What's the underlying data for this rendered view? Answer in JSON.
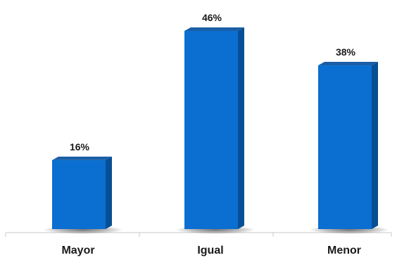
{
  "chart_data": {
    "type": "bar",
    "categories": [
      "Mayor",
      "Igual",
      "Menor"
    ],
    "values": [
      16,
      46,
      38
    ],
    "data_labels": [
      "16%",
      "46%",
      "38%"
    ],
    "value_suffix": "%",
    "ylim": [
      0,
      50
    ],
    "grid": false,
    "legend": "none",
    "colors": {
      "bar_front": "#0a6fd0",
      "bar_side": "#074f94",
      "bar_top": "#1b5ea6",
      "axis": "#c8c8c8"
    }
  }
}
